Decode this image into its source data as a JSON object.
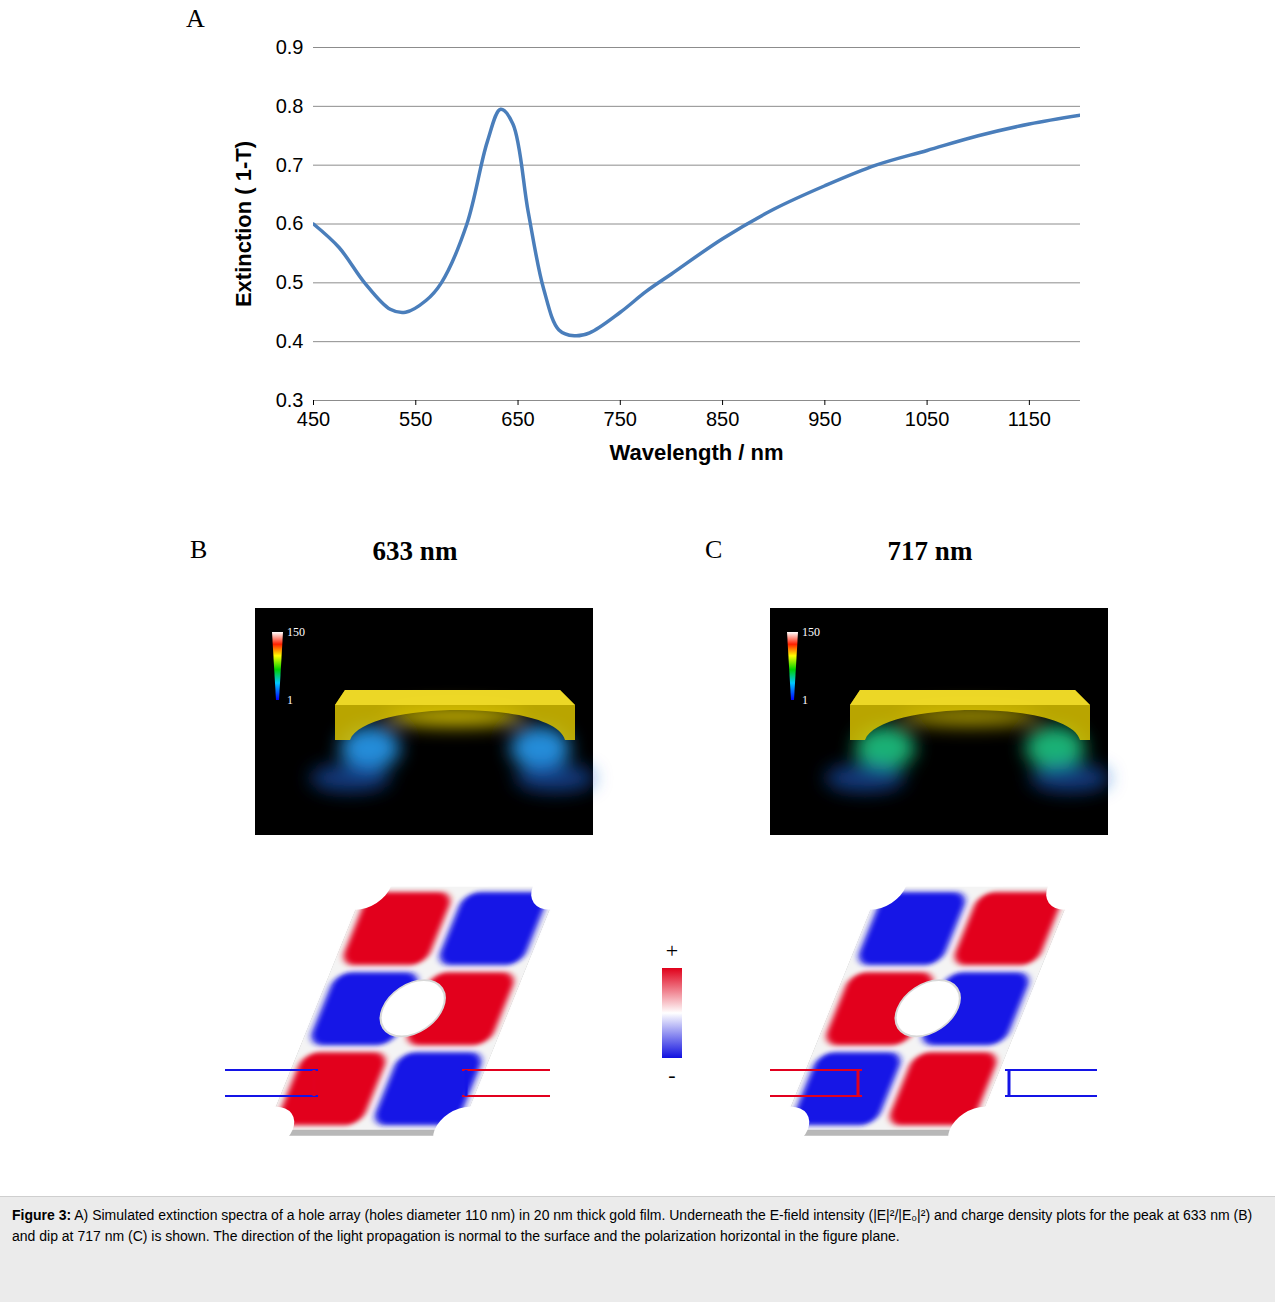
{
  "chart_data": {
    "type": "line",
    "panel_label": "A",
    "x_label": "Wavelength / nm",
    "y_label": "Extinction ( 1-T)",
    "x": [
      450,
      475,
      500,
      525,
      540,
      560,
      575,
      600,
      620,
      633,
      645,
      660,
      675,
      690,
      705,
      720,
      750,
      775,
      800,
      850,
      900,
      950,
      1000,
      1050,
      1100,
      1150,
      1200
    ],
    "values": [
      0.6,
      0.56,
      0.5,
      0.455,
      0.45,
      0.47,
      0.5,
      0.6,
      0.74,
      0.795,
      0.77,
      0.62,
      0.49,
      0.42,
      0.41,
      0.415,
      0.45,
      0.485,
      0.515,
      0.575,
      0.625,
      0.665,
      0.7,
      0.725,
      0.75,
      0.77,
      0.785
    ],
    "color": "#4a7ebb",
    "xlim": [
      450,
      1200
    ],
    "xticks": [
      450,
      550,
      650,
      750,
      850,
      950,
      1050,
      1150
    ],
    "ylim": [
      0.3,
      0.9
    ],
    "yticks": [
      0.3,
      0.4,
      0.5,
      0.6,
      0.7,
      0.8,
      0.9
    ],
    "grid": true
  },
  "field_panels": [
    {
      "label": "B",
      "title": "633 nm",
      "colorbar": {
        "range": [
          1,
          150
        ],
        "ticks": [
          150,
          1
        ]
      }
    },
    {
      "label": "C",
      "title": "717 nm",
      "colorbar": {
        "range": [
          1,
          150
        ],
        "ticks": [
          150,
          1
        ]
      }
    }
  ],
  "charge_colorbar": {
    "labels": [
      "+",
      "-"
    ]
  },
  "caption": {
    "label": "Figure 3:",
    "text": "A) Simulated extinction spectra of a hole array (holes diameter 110 nm) in 20 nm thick gold film. Underneath the E-field intensity (|E|²/|E₀|²) and charge density plots for the peak at 633 nm (B) and dip at 717 nm (C) is shown. The direction of the light propagation is normal to the surface and the polarization horizontal in the figure plane."
  }
}
